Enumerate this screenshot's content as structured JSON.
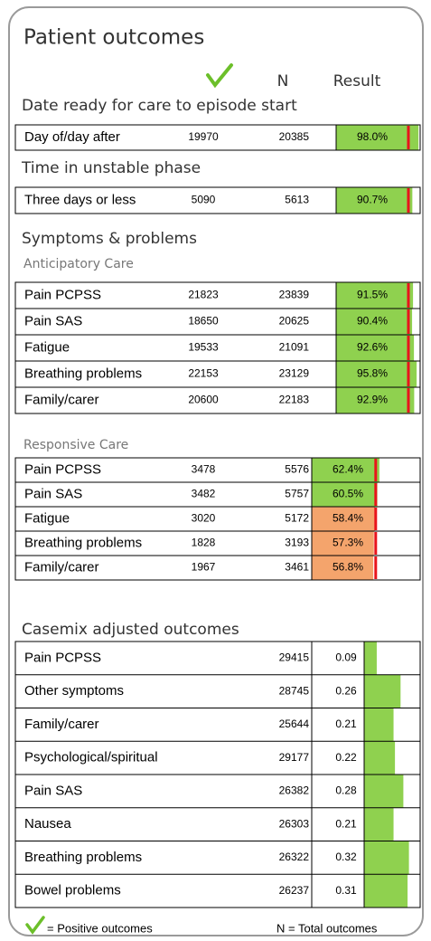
{
  "title": "Patient outcomes",
  "header": {
    "total": "N",
    "result": "Result"
  },
  "colors": {
    "above": "#8fd14f",
    "below": "#f4a46c",
    "benchmark": "#e8141c",
    "casemix": "#8fd14f"
  },
  "sections": [
    {
      "heading": "Date ready for care to episode start",
      "groups": [
        {
          "benchmark": 86,
          "scale": [
            0,
            100
          ],
          "rows": [
            {
              "label": "Day of/day after",
              "positive": 19970,
              "total": 20385,
              "result": 98.0,
              "result_label": "98.0%"
            }
          ]
        }
      ]
    },
    {
      "heading": "Time in unstable phase",
      "groups": [
        {
          "benchmark": 86,
          "scale": [
            0,
            100
          ],
          "rows": [
            {
              "label": "Three days or less",
              "positive": 5090,
              "total": 5613,
              "result": 90.7,
              "result_label": "90.7%"
            }
          ]
        }
      ]
    },
    {
      "heading": "Symptoms & problems",
      "groups": [
        {
          "subheading": "Anticipatory Care",
          "benchmark": 86,
          "scale": [
            0,
            100
          ],
          "rows": [
            {
              "label": "Pain PCPSS",
              "positive": 21823,
              "total": 23839,
              "result": 91.5,
              "result_label": "91.5%"
            },
            {
              "label": "Pain SAS",
              "positive": 18650,
              "total": 20625,
              "result": 90.4,
              "result_label": "90.4%"
            },
            {
              "label": "Fatigue",
              "positive": 19533,
              "total": 21091,
              "result": 92.6,
              "result_label": "92.6%"
            },
            {
              "label": "Breathing problems",
              "positive": 22153,
              "total": 23129,
              "result": 95.8,
              "result_label": "95.8%"
            },
            {
              "label": "Family/carer",
              "positive": 20600,
              "total": 22183,
              "result": 92.9,
              "result_label": "92.9%"
            }
          ]
        },
        {
          "subheading": "Responsive Care",
          "benchmark": 59,
          "scale": [
            0,
            100
          ],
          "rows": [
            {
              "label": "Pain PCPSS",
              "positive": 3478,
              "total": 5576,
              "result": 62.4,
              "result_label": "62.4%"
            },
            {
              "label": "Pain SAS",
              "positive": 3482,
              "total": 5757,
              "result": 60.5,
              "result_label": "60.5%"
            },
            {
              "label": "Fatigue",
              "positive": 3020,
              "total": 5172,
              "result": 58.4,
              "result_label": "58.4%"
            },
            {
              "label": "Breathing problems",
              "positive": 1828,
              "total": 3193,
              "result": 57.3,
              "result_label": "57.3%"
            },
            {
              "label": "Family/carer",
              "positive": 1967,
              "total": 3461,
              "result": 56.8,
              "result_label": "56.8%"
            }
          ]
        }
      ]
    }
  ],
  "casemix": {
    "heading": "Casemix adjusted outcomes",
    "scale": [
      0,
      0.4
    ],
    "rows": [
      {
        "label": "Pain PCPSS",
        "total": 29415,
        "score": 0.09
      },
      {
        "label": "Other symptoms",
        "total": 28745,
        "score": 0.26
      },
      {
        "label": "Family/carer",
        "total": 25644,
        "score": 0.21
      },
      {
        "label": "Psychological/spiritual",
        "total": 29177,
        "score": 0.22
      },
      {
        "label": "Pain SAS",
        "total": 26382,
        "score": 0.28
      },
      {
        "label": "Nausea",
        "total": 26303,
        "score": 0.21
      },
      {
        "label": "Breathing problems",
        "total": 26322,
        "score": 0.32
      },
      {
        "label": "Bowel problems",
        "total": 26237,
        "score": 0.31
      }
    ]
  },
  "legend": {
    "positive": "= Positive outcomes",
    "total": "N = Total outcomes"
  }
}
